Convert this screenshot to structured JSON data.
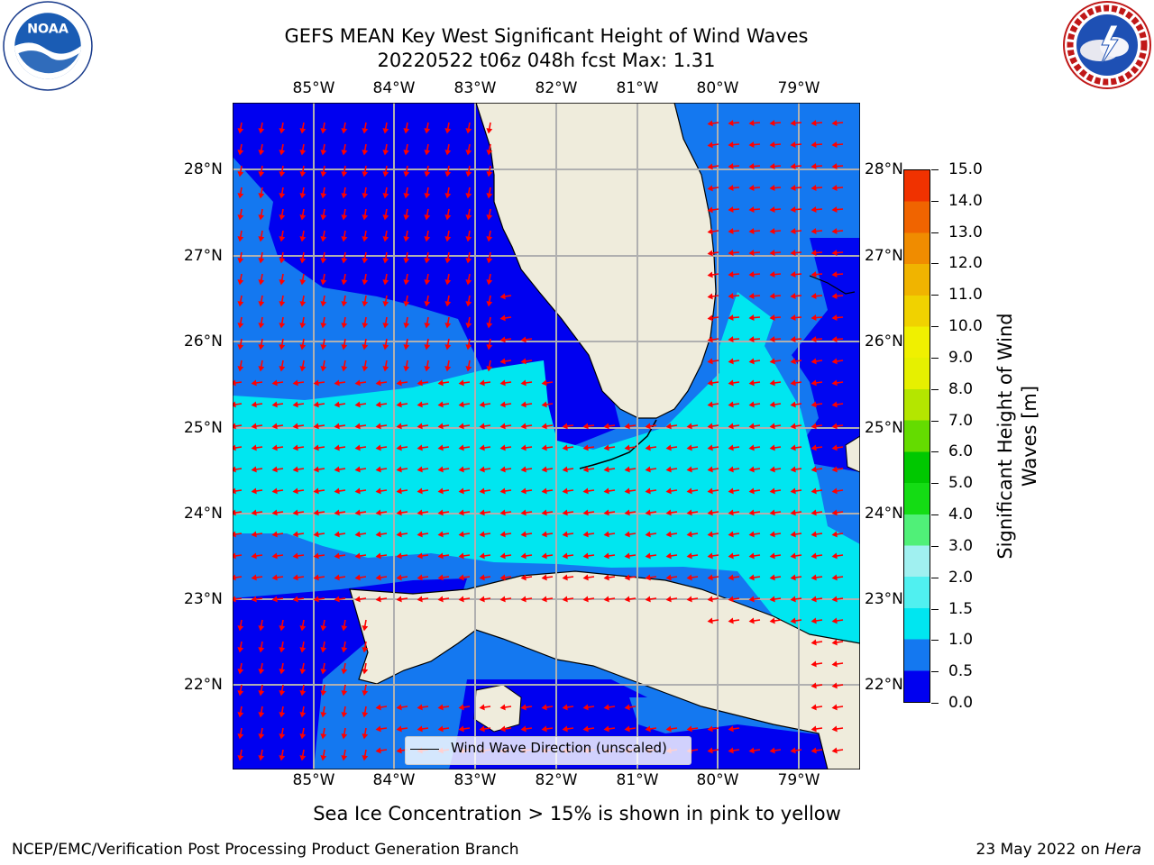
{
  "title_line1": "GEFS MEAN Key West Significant Height of Wind Waves",
  "title_line2": "20220522 t06z 048h fcst   Max: 1.31",
  "lon_ticks": [
    "85°W",
    "84°W",
    "83°W",
    "82°W",
    "81°W",
    "80°W",
    "79°W"
  ],
  "lat_ticks": [
    "28°N",
    "27°N",
    "26°N",
    "25°N",
    "24°N",
    "23°N",
    "22°N"
  ],
  "legend_label": "Wind Wave Direction (unscaled)",
  "colorbar": {
    "label": "Significant Height of Wind Waves [m]",
    "label_line1": "Significant Height of Wind",
    "label_line2": "Waves [m]",
    "ticks": [
      "0.0",
      "0.5",
      "1.0",
      "1.5",
      "2.0",
      "3.0",
      "4.0",
      "5.0",
      "6.0",
      "7.0",
      "8.0",
      "9.0",
      "10.0",
      "11.0",
      "12.0",
      "13.0",
      "14.0",
      "15.0"
    ],
    "colors": [
      "#0000f0",
      "#1478f0",
      "#00e6f0",
      "#50f0f0",
      "#a0f0f0",
      "#50f078",
      "#14dc14",
      "#00c800",
      "#64dc00",
      "#b4e600",
      "#e6f000",
      "#f0f000",
      "#f0d200",
      "#f0b400",
      "#f08c00",
      "#f06400",
      "#f03200",
      "#f00000"
    ]
  },
  "map_colors": {
    "land": "#efecdc",
    "deep_blue": "#0000f0",
    "mid_blue": "#1478f0",
    "cyan": "#00e6f0",
    "arrow": "#ff0000",
    "grid": "#b0b0b0"
  },
  "ice_note": "Sea Ice Concentration > 15% is shown in pink to yellow",
  "footer_left": "NCEP/EMC/Verification Post Processing Product Generation Branch",
  "footer_right_date": "23 May 2022 on",
  "footer_right_host": "Hera",
  "logos": [
    "noaa-logo",
    "nws-logo"
  ]
}
